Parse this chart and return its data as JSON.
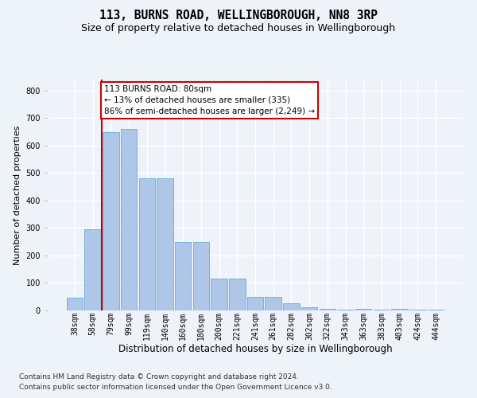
{
  "title1": "113, BURNS ROAD, WELLINGBOROUGH, NN8 3RP",
  "title2": "Size of property relative to detached houses in Wellingborough",
  "xlabel": "Distribution of detached houses by size in Wellingborough",
  "ylabel": "Number of detached properties",
  "footnote1": "Contains HM Land Registry data © Crown copyright and database right 2024.",
  "footnote2": "Contains public sector information licensed under the Open Government Licence v3.0.",
  "bar_labels": [
    "38sqm",
    "58sqm",
    "79sqm",
    "99sqm",
    "119sqm",
    "140sqm",
    "160sqm",
    "180sqm",
    "200sqm",
    "221sqm",
    "241sqm",
    "261sqm",
    "282sqm",
    "302sqm",
    "322sqm",
    "343sqm",
    "363sqm",
    "383sqm",
    "403sqm",
    "424sqm",
    "444sqm"
  ],
  "bar_values": [
    45,
    295,
    650,
    660,
    480,
    480,
    250,
    250,
    115,
    115,
    50,
    50,
    25,
    12,
    5,
    3,
    6,
    3,
    7,
    2,
    2
  ],
  "bar_color": "#aec6e8",
  "bar_edge_color": "#6aaad4",
  "annotation_line1": "113 BURNS ROAD: 80sqm",
  "annotation_line2": "← 13% of detached houses are smaller (335)",
  "annotation_line3": "86% of semi-detached houses are larger (2,249) →",
  "annotation_box_facecolor": "#ffffff",
  "annotation_box_edgecolor": "#cc0000",
  "vertical_line_color": "#cc0000",
  "background_color": "#eef2f9",
  "plot_background": "#eef2f9",
  "ylim_max": 840,
  "yticks": [
    0,
    100,
    200,
    300,
    400,
    500,
    600,
    700,
    800
  ],
  "grid_color": "#ffffff",
  "title1_fontsize": 10.5,
  "title2_fontsize": 9,
  "xlabel_fontsize": 8.5,
  "ylabel_fontsize": 8,
  "tick_fontsize": 7,
  "footnote_fontsize": 6.5,
  "prop_bar_index": 2
}
